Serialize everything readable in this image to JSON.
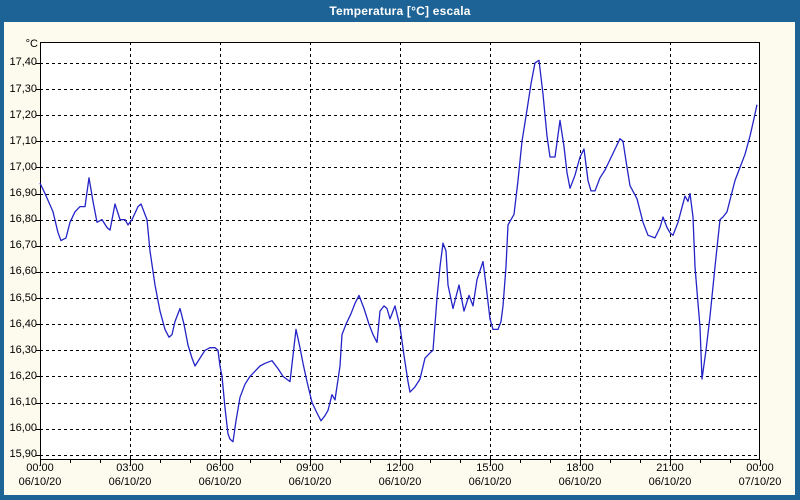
{
  "window": {
    "title": "Temperatura [°C] escala"
  },
  "colors": {
    "title_bar": "#1d6396",
    "frame": "#1d6396",
    "background": "#fcfbee",
    "plot_background": "#ffffff",
    "line": "#2424c8",
    "grid": "#000000",
    "text": "#000000"
  },
  "chart_data": {
    "type": "line",
    "title": "Temperatura [°C] escala",
    "unit_label": "°C",
    "xlabel": "",
    "ylabel": "°C",
    "grid": "dashed",
    "legend": "none",
    "ylim": [
      15.88,
      17.48
    ],
    "xlim_minutes": [
      0,
      1440
    ],
    "y_ticks": [
      {
        "value": 17.4,
        "label": "17,40"
      },
      {
        "value": 17.3,
        "label": "17,30"
      },
      {
        "value": 17.2,
        "label": "17,20"
      },
      {
        "value": 17.1,
        "label": "17,10"
      },
      {
        "value": 17.0,
        "label": "17,00"
      },
      {
        "value": 16.9,
        "label": "16,90"
      },
      {
        "value": 16.8,
        "label": "16,80"
      },
      {
        "value": 16.7,
        "label": "16,70"
      },
      {
        "value": 16.6,
        "label": "16,60"
      },
      {
        "value": 16.5,
        "label": "16,50"
      },
      {
        "value": 16.4,
        "label": "16,40"
      },
      {
        "value": 16.3,
        "label": "16,30"
      },
      {
        "value": 16.2,
        "label": "16,20"
      },
      {
        "value": 16.1,
        "label": "16,10"
      },
      {
        "value": 16.0,
        "label": "16,00"
      },
      {
        "value": 15.9,
        "label": "15,90"
      }
    ],
    "x_ticks": [
      {
        "t": 0,
        "time": "00:00",
        "date": "06/10/20"
      },
      {
        "t": 180,
        "time": "03:00",
        "date": "06/10/20"
      },
      {
        "t": 360,
        "time": "06:00",
        "date": "06/10/20"
      },
      {
        "t": 540,
        "time": "09:00",
        "date": "06/10/20"
      },
      {
        "t": 720,
        "time": "12:00",
        "date": "06/10/20"
      },
      {
        "t": 900,
        "time": "15:00",
        "date": "06/10/20"
      },
      {
        "t": 1080,
        "time": "18:00",
        "date": "06/10/20"
      },
      {
        "t": 1260,
        "time": "21:00",
        "date": "06/10/20"
      },
      {
        "t": 1440,
        "time": "00:00",
        "date": "07/10/20"
      }
    ],
    "minor_tick_every_minutes": 60,
    "series": [
      {
        "name": "Temperatura",
        "points": [
          [
            0,
            16.94
          ],
          [
            10,
            16.9
          ],
          [
            26,
            16.83
          ],
          [
            36,
            16.75
          ],
          [
            42,
            16.72
          ],
          [
            52,
            16.73
          ],
          [
            60,
            16.79
          ],
          [
            70,
            16.83
          ],
          [
            80,
            16.85
          ],
          [
            90,
            16.85
          ],
          [
            98,
            16.96
          ],
          [
            106,
            16.87
          ],
          [
            114,
            16.79
          ],
          [
            124,
            16.8
          ],
          [
            134,
            16.77
          ],
          [
            140,
            16.76
          ],
          [
            150,
            16.86
          ],
          [
            160,
            16.8
          ],
          [
            170,
            16.8
          ],
          [
            176,
            16.78
          ],
          [
            184,
            16.8
          ],
          [
            196,
            16.85
          ],
          [
            202,
            16.86
          ],
          [
            214,
            16.8
          ],
          [
            220,
            16.68
          ],
          [
            230,
            16.55
          ],
          [
            240,
            16.45
          ],
          [
            250,
            16.38
          ],
          [
            258,
            16.35
          ],
          [
            264,
            16.36
          ],
          [
            270,
            16.41
          ],
          [
            280,
            16.46
          ],
          [
            288,
            16.4
          ],
          [
            296,
            16.32
          ],
          [
            304,
            16.27
          ],
          [
            310,
            16.24
          ],
          [
            320,
            16.27
          ],
          [
            330,
            16.3
          ],
          [
            340,
            16.31
          ],
          [
            350,
            16.31
          ],
          [
            356,
            16.3
          ],
          [
            360,
            16.24
          ],
          [
            364,
            16.2
          ],
          [
            370,
            16.08
          ],
          [
            376,
            15.98
          ],
          [
            380,
            15.96
          ],
          [
            386,
            15.95
          ],
          [
            392,
            16.03
          ],
          [
            400,
            16.12
          ],
          [
            410,
            16.17
          ],
          [
            420,
            16.2
          ],
          [
            430,
            16.22
          ],
          [
            440,
            16.24
          ],
          [
            450,
            16.25
          ],
          [
            464,
            16.26
          ],
          [
            476,
            16.23
          ],
          [
            486,
            16.2
          ],
          [
            500,
            16.18
          ],
          [
            506,
            16.28
          ],
          [
            512,
            16.38
          ],
          [
            520,
            16.31
          ],
          [
            526,
            16.25
          ],
          [
            534,
            16.18
          ],
          [
            544,
            16.1
          ],
          [
            554,
            16.06
          ],
          [
            562,
            16.03
          ],
          [
            570,
            16.05
          ],
          [
            576,
            16.07
          ],
          [
            584,
            16.13
          ],
          [
            590,
            16.11
          ],
          [
            600,
            16.24
          ],
          [
            604,
            16.36
          ],
          [
            612,
            16.4
          ],
          [
            622,
            16.44
          ],
          [
            630,
            16.48
          ],
          [
            638,
            16.51
          ],
          [
            648,
            16.46
          ],
          [
            658,
            16.4
          ],
          [
            666,
            16.36
          ],
          [
            674,
            16.33
          ],
          [
            680,
            16.45
          ],
          [
            688,
            16.47
          ],
          [
            694,
            16.46
          ],
          [
            700,
            16.42
          ],
          [
            710,
            16.47
          ],
          [
            720,
            16.39
          ],
          [
            728,
            16.28
          ],
          [
            736,
            16.18
          ],
          [
            740,
            16.14
          ],
          [
            750,
            16.16
          ],
          [
            760,
            16.19
          ],
          [
            770,
            16.27
          ],
          [
            780,
            16.29
          ],
          [
            786,
            16.3
          ],
          [
            794,
            16.5
          ],
          [
            800,
            16.62
          ],
          [
            806,
            16.71
          ],
          [
            812,
            16.68
          ],
          [
            816,
            16.55
          ],
          [
            826,
            16.46
          ],
          [
            838,
            16.55
          ],
          [
            848,
            16.45
          ],
          [
            858,
            16.51
          ],
          [
            866,
            16.47
          ],
          [
            874,
            16.57
          ],
          [
            886,
            16.64
          ],
          [
            892,
            16.55
          ],
          [
            900,
            16.42
          ],
          [
            906,
            16.38
          ],
          [
            916,
            16.38
          ],
          [
            922,
            16.41
          ],
          [
            926,
            16.47
          ],
          [
            932,
            16.62
          ],
          [
            936,
            16.78
          ],
          [
            942,
            16.8
          ],
          [
            948,
            16.82
          ],
          [
            956,
            16.95
          ],
          [
            964,
            17.1
          ],
          [
            974,
            17.22
          ],
          [
            982,
            17.32
          ],
          [
            990,
            17.4
          ],
          [
            998,
            17.41
          ],
          [
            1006,
            17.28
          ],
          [
            1014,
            17.12
          ],
          [
            1020,
            17.04
          ],
          [
            1030,
            17.04
          ],
          [
            1040,
            17.18
          ],
          [
            1048,
            17.08
          ],
          [
            1054,
            16.98
          ],
          [
            1060,
            16.92
          ],
          [
            1070,
            16.97
          ],
          [
            1080,
            17.04
          ],
          [
            1088,
            17.07
          ],
          [
            1096,
            16.95
          ],
          [
            1102,
            16.91
          ],
          [
            1110,
            16.91
          ],
          [
            1120,
            16.96
          ],
          [
            1130,
            16.99
          ],
          [
            1140,
            17.03
          ],
          [
            1150,
            17.07
          ],
          [
            1160,
            17.11
          ],
          [
            1166,
            17.1
          ],
          [
            1174,
            17.0
          ],
          [
            1180,
            16.93
          ],
          [
            1194,
            16.88
          ],
          [
            1206,
            16.79
          ],
          [
            1216,
            16.74
          ],
          [
            1230,
            16.73
          ],
          [
            1240,
            16.77
          ],
          [
            1246,
            16.81
          ],
          [
            1254,
            16.77
          ],
          [
            1260,
            16.75
          ],
          [
            1266,
            16.74
          ],
          [
            1276,
            16.79
          ],
          [
            1290,
            16.89
          ],
          [
            1296,
            16.87
          ],
          [
            1300,
            16.9
          ],
          [
            1306,
            16.81
          ],
          [
            1310,
            16.62
          ],
          [
            1316,
            16.48
          ],
          [
            1320,
            16.39
          ],
          [
            1324,
            16.19
          ],
          [
            1332,
            16.3
          ],
          [
            1340,
            16.43
          ],
          [
            1350,
            16.62
          ],
          [
            1360,
            16.8
          ],
          [
            1366,
            16.81
          ],
          [
            1374,
            16.83
          ],
          [
            1382,
            16.89
          ],
          [
            1390,
            16.95
          ],
          [
            1400,
            17.0
          ],
          [
            1410,
            17.05
          ],
          [
            1420,
            17.12
          ],
          [
            1426,
            17.17
          ],
          [
            1434,
            17.24
          ]
        ]
      }
    ]
  }
}
